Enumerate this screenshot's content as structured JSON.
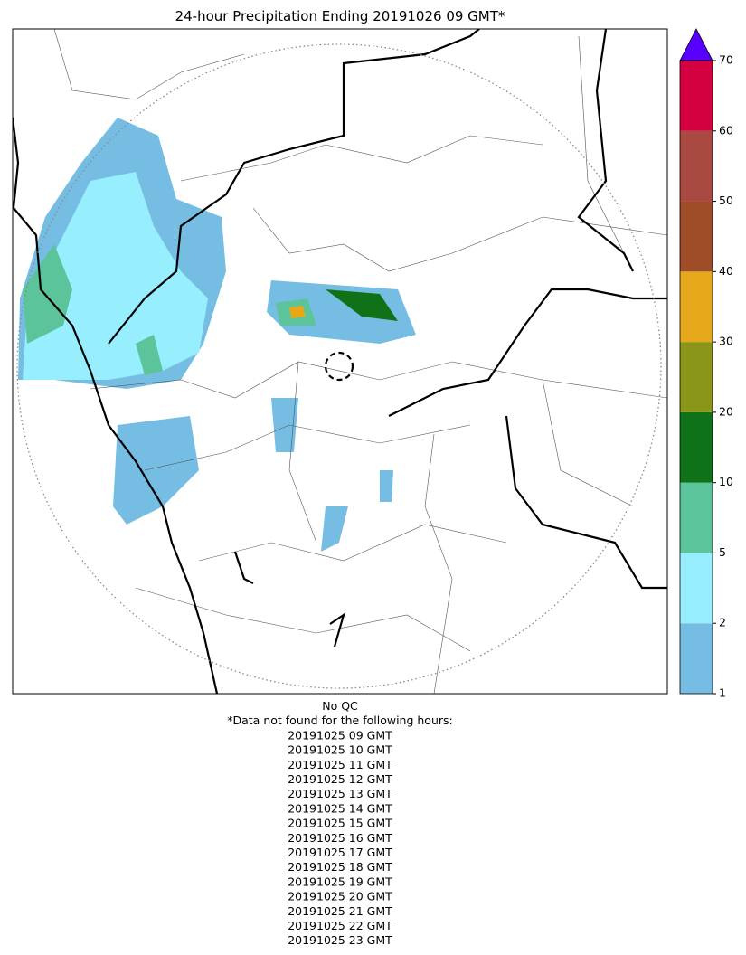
{
  "title": "24-hour Precipitation Ending 20191026 09 GMT*",
  "colorbar": {
    "ticks": [
      1,
      2,
      5,
      10,
      20,
      30,
      40,
      50,
      60,
      70
    ],
    "colors": [
      "#76bde3",
      "#97eefe",
      "#5cc49b",
      "#0f7218",
      "#8a9618",
      "#e5a81b",
      "#9f4c29",
      "#a84a42",
      "#d5003f"
    ],
    "extend_color": "#5800ff"
  },
  "footer": [
    "No QC",
    "*Data not found for the following hours:",
    "20191025 09 GMT",
    "20191025 10 GMT",
    "20191025 11 GMT",
    "20191025 12 GMT",
    "20191025 13 GMT",
    "20191025 14 GMT",
    "20191025 15 GMT",
    "20191025 16 GMT",
    "20191025 17 GMT",
    "20191025 18 GMT",
    "20191025 19 GMT",
    "20191025 20 GMT",
    "20191025 21 GMT",
    "20191025 22 GMT",
    "20191025 23 GMT"
  ]
}
